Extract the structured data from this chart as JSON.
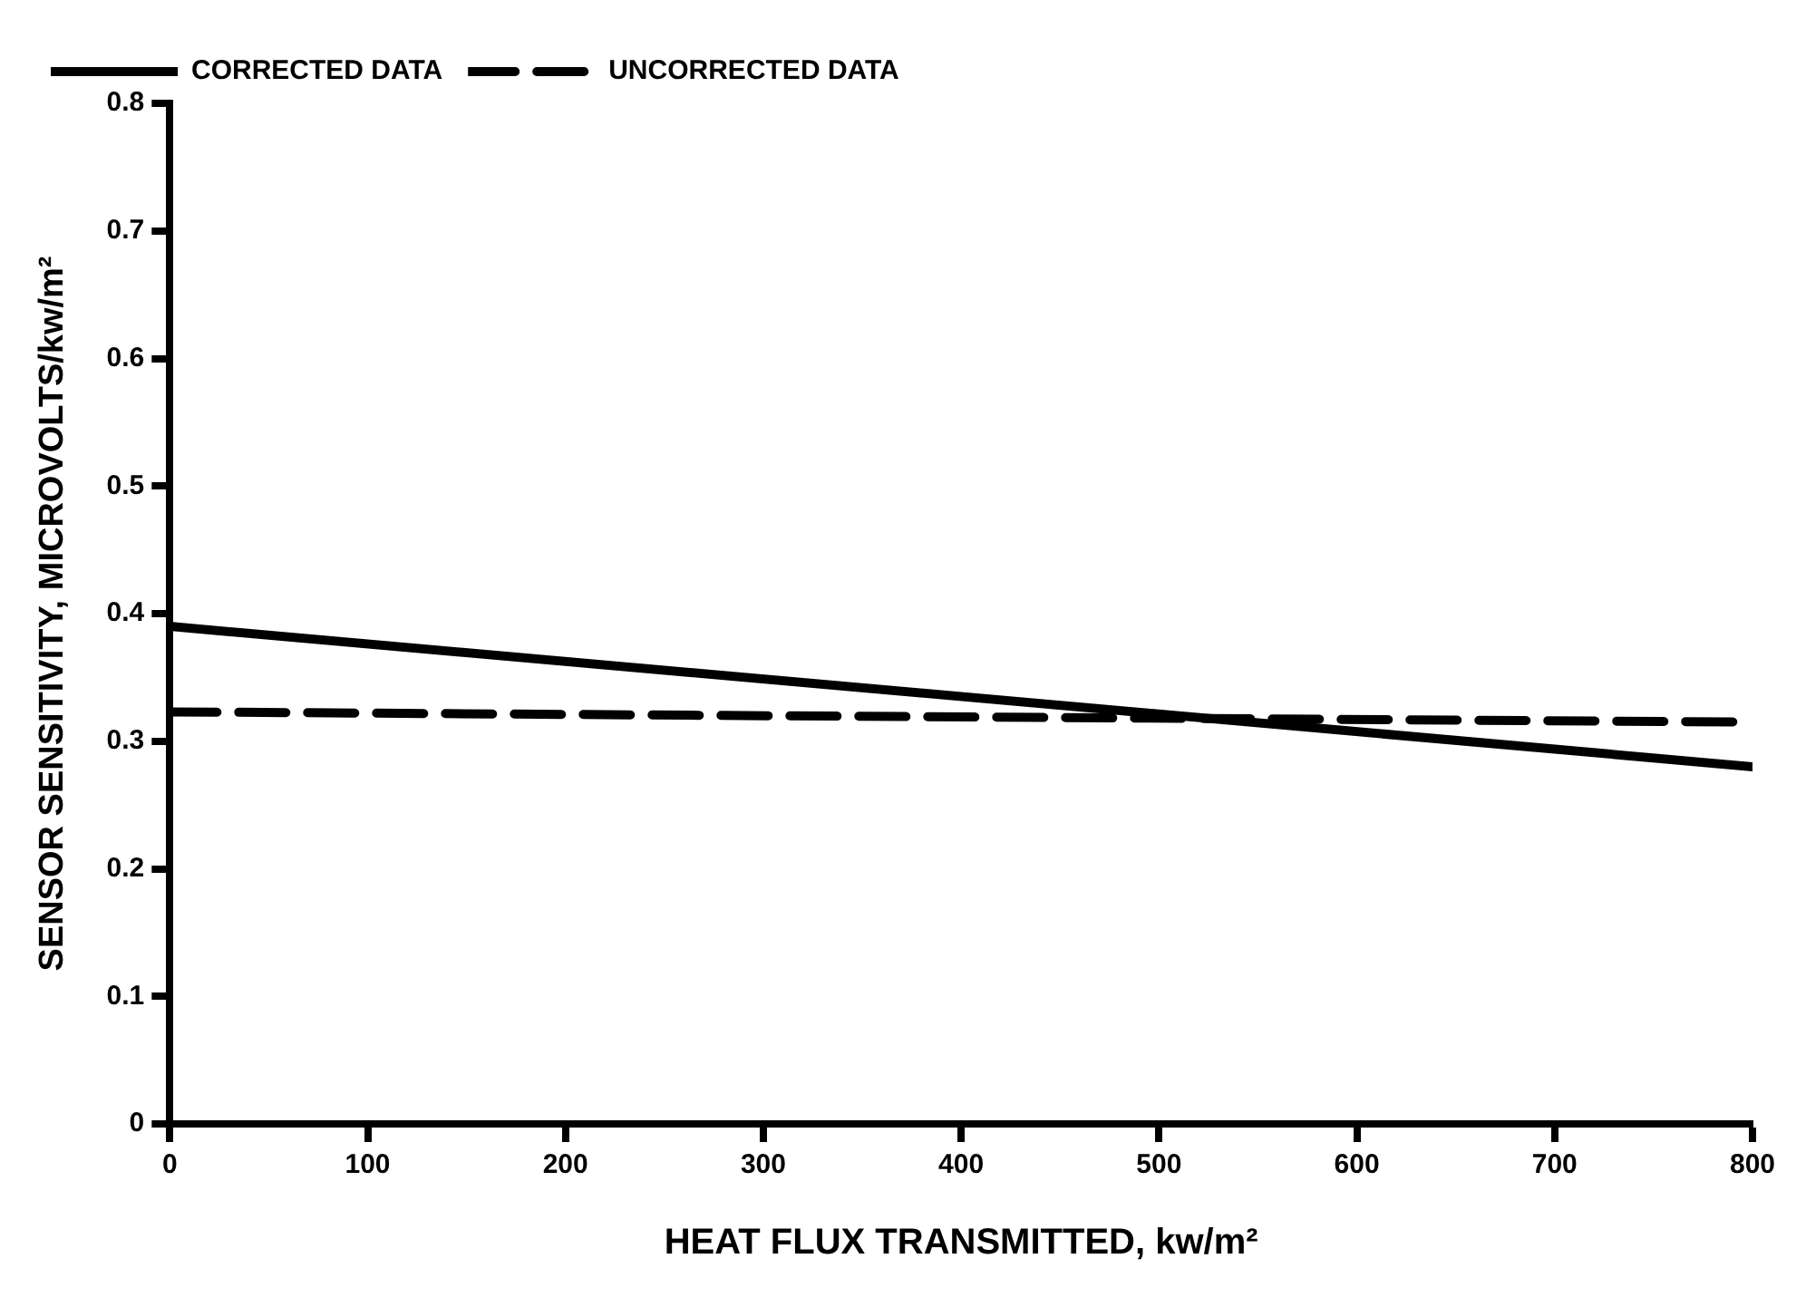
{
  "chart_data": {
    "type": "line",
    "xlabel": "HEAT FLUX TRANSMITTED, kw/m²",
    "ylabel": "SENSOR SENSITIVITY, MICROVOLTS/kw/m²",
    "x": [
      0,
      800
    ],
    "series": [
      {
        "name": "CORRECTED DATA",
        "color": "#000000",
        "values": [
          0.39,
          0.28
        ],
        "line_style": "solid"
      },
      {
        "name": "UNCORRECTED DATA",
        "color": "#000000",
        "values": [
          0.323,
          0.315
        ],
        "line_style": "dashed"
      }
    ],
    "xlim": [
      0,
      800
    ],
    "xticks": [
      0,
      100,
      200,
      300,
      400,
      500,
      600,
      700,
      800
    ],
    "ylim": [
      0,
      0.8
    ],
    "yticks": [
      0,
      0.1,
      0.2,
      0.3,
      0.4,
      0.5,
      0.6,
      0.7,
      0.8
    ],
    "grid": false,
    "legend": "top left",
    "marker": "none"
  }
}
